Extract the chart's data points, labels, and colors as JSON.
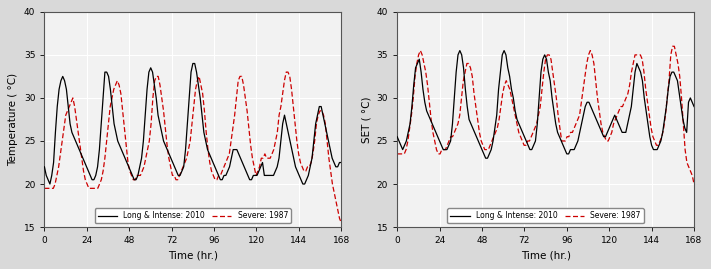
{
  "xlim": [
    0,
    168
  ],
  "xticks": [
    0,
    24,
    48,
    72,
    96,
    120,
    144,
    168
  ],
  "xlabel": "Time (hr.)",
  "plot1": {
    "ylabel": "Temperature ( °C)",
    "ylim": [
      15,
      40
    ],
    "yticks": [
      15,
      20,
      25,
      30,
      35,
      40
    ]
  },
  "plot2": {
    "ylabel": "SET ( °C)",
    "ylim": [
      15,
      40
    ],
    "yticks": [
      15,
      20,
      25,
      30,
      35,
      40
    ]
  },
  "legend": {
    "line1_label": "Long & Intense: 2010",
    "line2_label": "Severe: 1987",
    "line1_color": "#000000",
    "line2_color": "#cc0000",
    "line1_style": "-",
    "line2_style": "--"
  },
  "fig_facecolor": "#d9d9d9",
  "ax_facecolor": "#f2f2f2",
  "grid_color": "#ffffff",
  "temp_2010": [
    22,
    21,
    20.5,
    20,
    21,
    22.5,
    26,
    29,
    31,
    32,
    32.5,
    32,
    31,
    29,
    27,
    26,
    25.5,
    25,
    24.5,
    24,
    23.5,
    23,
    22.5,
    22,
    21.5,
    21,
    20.5,
    20.5,
    21,
    22,
    24,
    27,
    30,
    33,
    33,
    32.5,
    31,
    29,
    27,
    26,
    25,
    24.5,
    24,
    23.5,
    23,
    22.5,
    22,
    21.5,
    21,
    20.5,
    20.5,
    21,
    22,
    23,
    25,
    28,
    31,
    33,
    33.5,
    33,
    31.5,
    30,
    28,
    27,
    26,
    25,
    24.5,
    24,
    23.5,
    23,
    22.5,
    22,
    21.5,
    21,
    21,
    21.5,
    22,
    24,
    27,
    30,
    33,
    34,
    34,
    33,
    31.5,
    30,
    28,
    26,
    25,
    24,
    23.5,
    23,
    22.5,
    22,
    21.5,
    21,
    20.5,
    20.5,
    21,
    21,
    21.5,
    22,
    23,
    24,
    24,
    24,
    23.5,
    23,
    22.5,
    22,
    21.5,
    21,
    20.5,
    20.5,
    21,
    21,
    21,
    21.5,
    22,
    22.5,
    21,
    21,
    21,
    21,
    21,
    21,
    21.5,
    22,
    23,
    25,
    27,
    28,
    27,
    26,
    25,
    24,
    23,
    22,
    21.5,
    21,
    20.5,
    20,
    20,
    20.5,
    21,
    22,
    23,
    25,
    27,
    28,
    29,
    29,
    28,
    27,
    26,
    25,
    24,
    23,
    22.5,
    22,
    22,
    22.5,
    22.5
  ],
  "temp_1987": [
    19.5,
    19.5,
    19.5,
    19.5,
    19.5,
    19.5,
    20,
    21,
    22,
    23.5,
    25,
    26.5,
    28,
    28.5,
    29,
    29.5,
    30,
    29,
    27.5,
    26,
    24.5,
    23,
    21.5,
    20.5,
    20,
    19.5,
    19.5,
    19.5,
    19.5,
    19.5,
    19.5,
    20,
    20.5,
    21.5,
    23,
    25,
    27,
    29,
    30,
    31,
    31.5,
    32,
    31.5,
    30.5,
    28.5,
    26.5,
    24.5,
    22.5,
    21.5,
    21,
    20.5,
    20.5,
    21,
    21,
    21,
    21.5,
    22,
    23,
    24,
    25,
    27,
    30,
    32,
    32.5,
    32.5,
    31.5,
    30,
    28.5,
    26.5,
    24.5,
    23,
    22,
    21,
    21,
    20.5,
    20.5,
    21,
    21.5,
    22,
    22.5,
    23,
    24,
    25,
    27,
    29,
    31,
    32,
    32.5,
    31.5,
    30.5,
    28.5,
    26,
    24,
    22.5,
    21.5,
    21,
    20.5,
    20.5,
    21,
    21,
    21.5,
    22,
    22.5,
    23,
    23.5,
    25,
    26.5,
    28,
    30,
    32,
    32.5,
    32.5,
    31.5,
    30,
    28.5,
    26.5,
    24.5,
    23,
    22,
    21,
    21.5,
    22,
    23,
    23,
    23.5,
    23,
    23,
    23,
    23.5,
    24,
    25,
    26,
    28,
    29,
    30.5,
    32,
    33,
    33,
    32.5,
    31,
    29,
    27,
    25,
    23.5,
    22.5,
    22,
    21.5,
    21.5,
    22,
    22,
    22.5,
    23.5,
    25,
    27,
    28,
    28.5,
    28.5,
    28,
    27,
    25,
    23,
    21.5,
    20,
    19,
    18,
    17,
    16,
    15.5
  ],
  "set_2010": [
    25.5,
    25,
    24.5,
    24,
    24.5,
    25,
    26,
    27,
    29,
    31.5,
    33.5,
    34,
    34.5,
    33,
    31,
    29.5,
    28.5,
    28,
    27.5,
    27,
    26.5,
    26,
    25.5,
    25,
    24.5,
    24,
    24,
    24,
    24.5,
    25,
    27,
    30,
    33,
    35,
    35.5,
    35,
    33.5,
    31,
    29,
    27.5,
    27,
    26.5,
    26,
    25.5,
    25,
    24.5,
    24,
    23.5,
    23,
    23,
    23.5,
    24,
    25,
    26.5,
    28,
    31,
    33,
    35,
    35.5,
    35,
    33.5,
    32.5,
    31,
    30,
    28.5,
    27.5,
    27,
    26.5,
    26,
    25.5,
    25,
    24.5,
    24,
    24,
    24.5,
    25,
    27,
    30,
    33,
    34.5,
    35,
    34.5,
    33,
    32,
    30,
    28.5,
    27,
    26,
    25.5,
    25,
    24.5,
    24,
    23.5,
    23.5,
    24,
    24,
    24,
    24.5,
    25,
    26,
    27,
    28,
    29,
    29.5,
    29.5,
    29,
    28.5,
    28,
    27.5,
    27,
    26.5,
    26,
    25.5,
    25.5,
    26,
    26.5,
    27,
    27.5,
    28,
    27.5,
    27,
    26.5,
    26,
    26,
    26,
    27,
    28,
    29,
    31,
    33,
    34,
    33.5,
    33,
    32,
    30,
    28.5,
    27,
    25.5,
    24.5,
    24,
    24,
    24,
    24.5,
    25,
    26,
    27.5,
    29,
    31,
    32.5,
    33,
    33,
    32.5,
    32,
    30.5,
    29,
    27.5,
    26.5,
    26,
    29.5,
    30,
    29.5,
    29
  ],
  "set_1987": [
    23.5,
    23.5,
    23.5,
    23.5,
    23.5,
    24,
    25,
    26.5,
    28,
    30,
    32.5,
    34,
    35,
    35.5,
    35,
    34,
    33,
    31.5,
    29.5,
    27.5,
    26,
    25,
    24,
    23.5,
    23.5,
    24,
    24,
    24,
    24.5,
    25,
    25.5,
    25.5,
    26,
    26.5,
    27,
    28,
    30,
    32,
    33,
    34,
    34,
    33.5,
    32.5,
    30.5,
    29,
    27.5,
    26,
    25,
    24.5,
    24,
    24,
    24,
    24.5,
    25,
    25.5,
    26,
    26.5,
    27.5,
    29,
    30.5,
    31.5,
    32,
    31.5,
    31,
    30,
    29,
    28,
    27,
    26,
    25.5,
    25,
    24.5,
    24.5,
    25,
    25,
    25.5,
    26,
    26.5,
    27,
    28,
    29,
    31,
    33,
    34.5,
    35,
    35,
    34.5,
    33,
    31.5,
    30,
    28,
    26.5,
    25,
    25,
    25,
    25.5,
    25.5,
    26,
    26,
    26.5,
    27,
    27.5,
    28,
    29.5,
    31,
    32.5,
    34,
    35,
    35.5,
    35,
    34,
    32,
    30,
    28.5,
    27,
    26,
    25.5,
    25,
    25,
    25.5,
    26,
    27,
    27.5,
    28,
    28.5,
    29,
    29,
    29.5,
    30,
    30.5,
    31.5,
    33,
    34,
    35,
    35,
    35,
    35,
    34.5,
    33,
    31,
    29.5,
    28,
    26.5,
    25.5,
    25,
    24.5,
    24.5,
    25,
    25.5,
    26.5,
    28,
    30,
    32,
    35,
    36,
    36,
    35,
    34,
    32.5,
    30,
    27,
    24,
    22.5,
    22,
    21.5,
    21,
    20
  ]
}
